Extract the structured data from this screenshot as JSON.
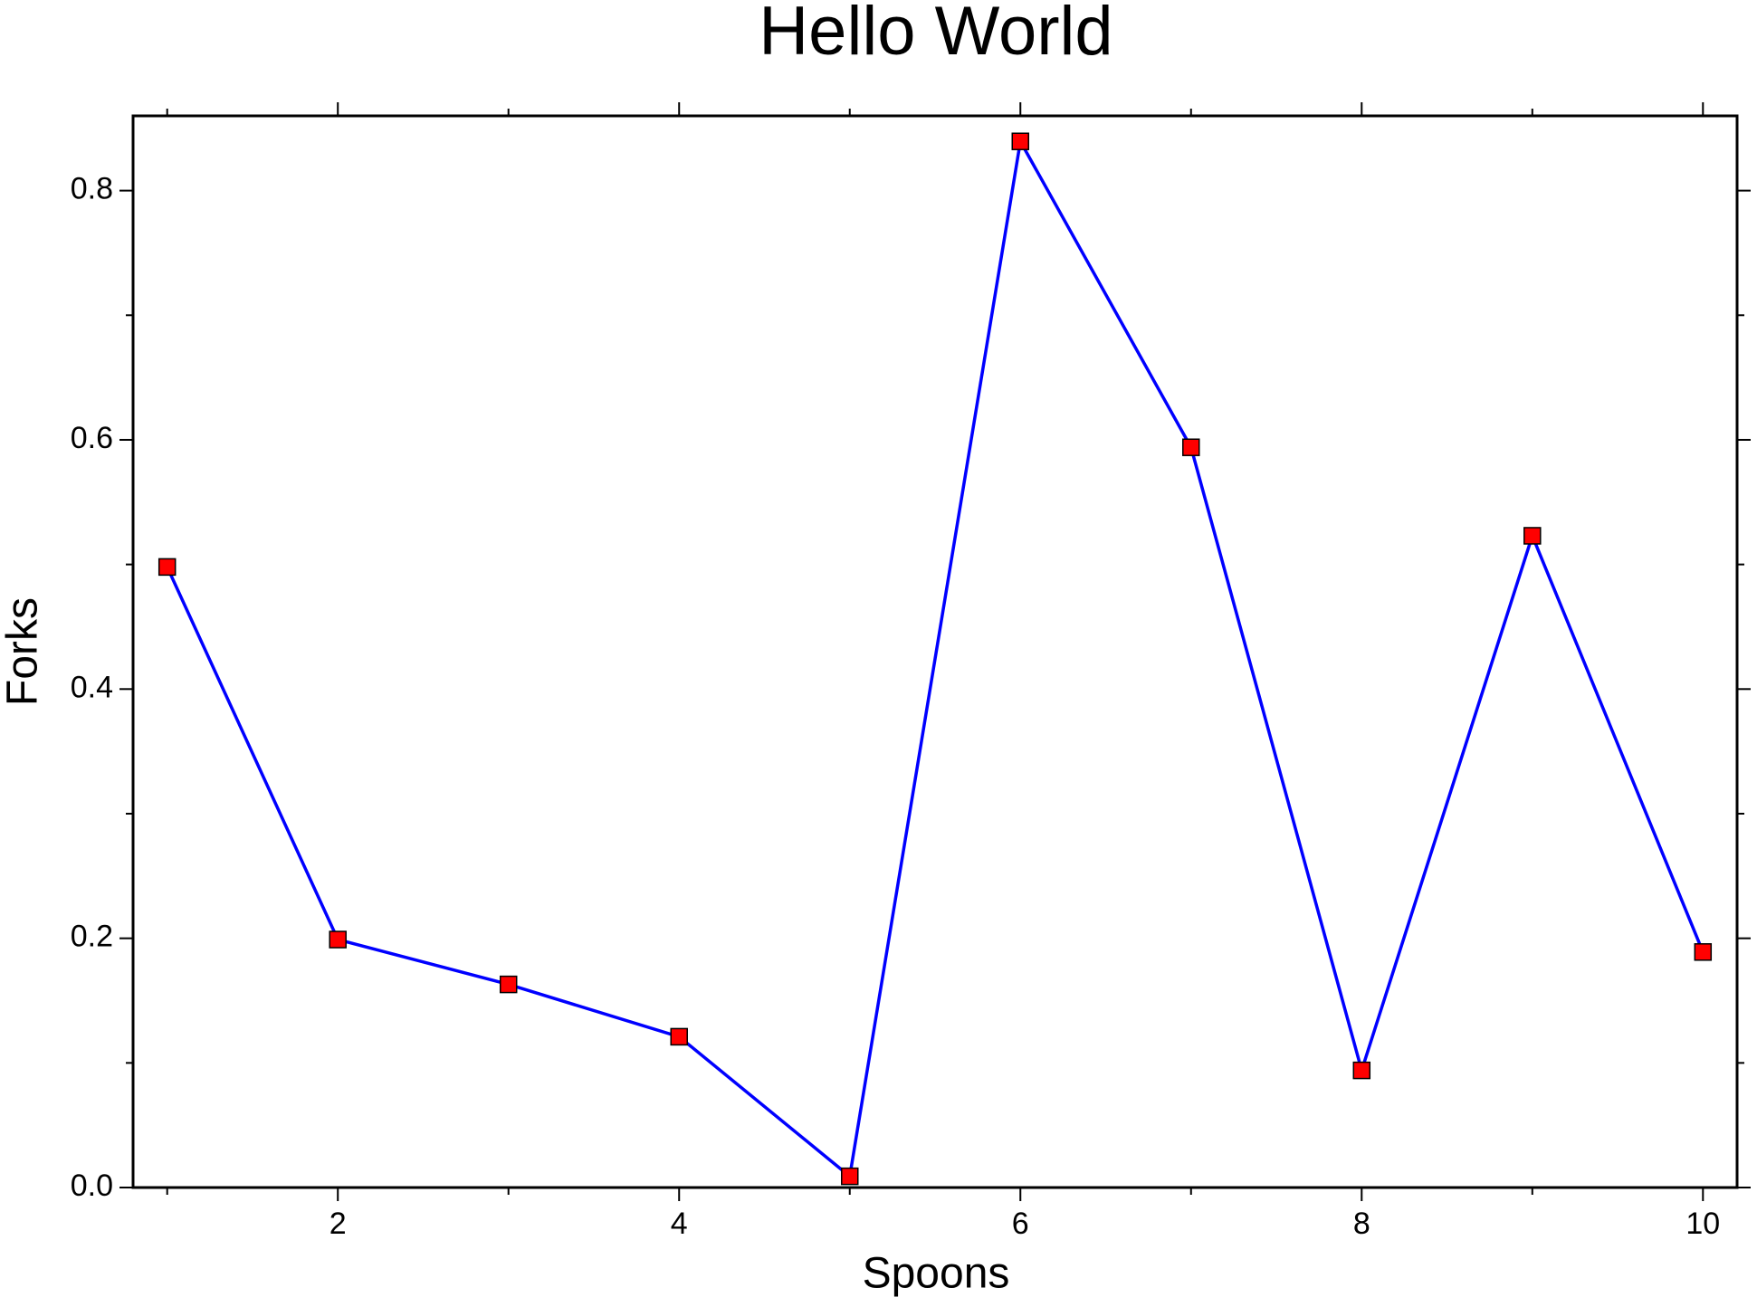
{
  "chart_data": {
    "type": "line",
    "title": "Hello World",
    "x_label": "Spoons",
    "y_label": "Forks",
    "x": [
      1,
      2,
      3,
      4,
      5,
      6,
      7,
      8,
      9,
      10
    ],
    "series": [
      {
        "color": "#0000ff",
        "marker_color": "#ff0000",
        "values": [
          0.498,
          0.199,
          0.163,
          0.121,
          0.009,
          0.8395,
          0.594,
          0.094,
          0.523,
          0.189
        ]
      }
    ],
    "xlim": [
      0.8,
      10.2
    ],
    "ylim": [
      0,
      0.86
    ],
    "xticks": [
      2,
      4,
      6,
      8,
      10
    ],
    "xminorticks": [
      1,
      3,
      5,
      7,
      9
    ],
    "yticks": [
      {
        "value": 0,
        "label": "0.0"
      },
      0.2,
      0.4,
      0.6,
      0.8
    ],
    "yminorticks": [
      0.1,
      0.3,
      0.5,
      0.7
    ]
  }
}
